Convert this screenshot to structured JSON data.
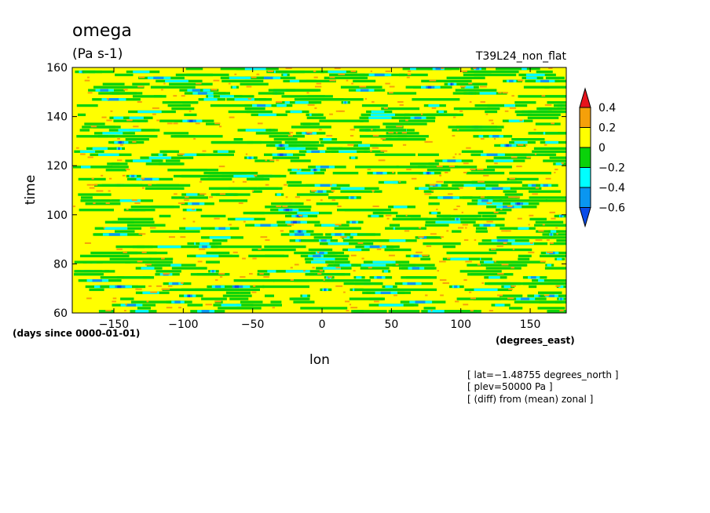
{
  "chart_data": {
    "type": "heatmap",
    "title": "omega",
    "subtitle": "(Pa s-1)",
    "run_label": "T39L24_non_flat",
    "xlabel": "lon",
    "x_units": "(degrees_east)",
    "ylabel": "time",
    "y_units": "(days since 0000-01-01)",
    "xlim": [
      -180,
      176
    ],
    "ylim": [
      60,
      160
    ],
    "x_ticks": [
      -150,
      -100,
      -50,
      0,
      50,
      100,
      150
    ],
    "x_tick_labels": [
      "−150",
      "−100",
      "−50",
      "0",
      "50",
      "100",
      "150"
    ],
    "y_ticks": [
      60,
      80,
      100,
      120,
      140,
      160
    ],
    "y_tick_labels": [
      "60",
      "80",
      "100",
      "120",
      "140",
      "160"
    ],
    "colorbar": {
      "levels": [
        0.4,
        0.2,
        0,
        -0.2,
        -0.4,
        -0.6
      ],
      "labels": [
        "0.4",
        "0.2",
        "0",
        "−0.2",
        "−0.4",
        "−0.6"
      ],
      "colors": [
        "#e8141c",
        "#f5a00a",
        "#ffff00",
        "#0ad20a",
        "#00ffff",
        "#0a96f0",
        "#0a4ce8"
      ],
      "extend": "both"
    },
    "contour_fill_colors": {
      "dominant": "#ffff00",
      "positive": "#f5a00a",
      "negative_light": "#0ad20a",
      "negative_mid": "#00ffff",
      "negative_strong": "#0a96f0",
      "negative_max": "#0a4ce8"
    },
    "grid": false,
    "notes": [
      "[ lat=−1.48755 degrees_north ]",
      "[ plev=50000 Pa ]",
      "[ (diff) from (mean) zonal ]"
    ]
  }
}
